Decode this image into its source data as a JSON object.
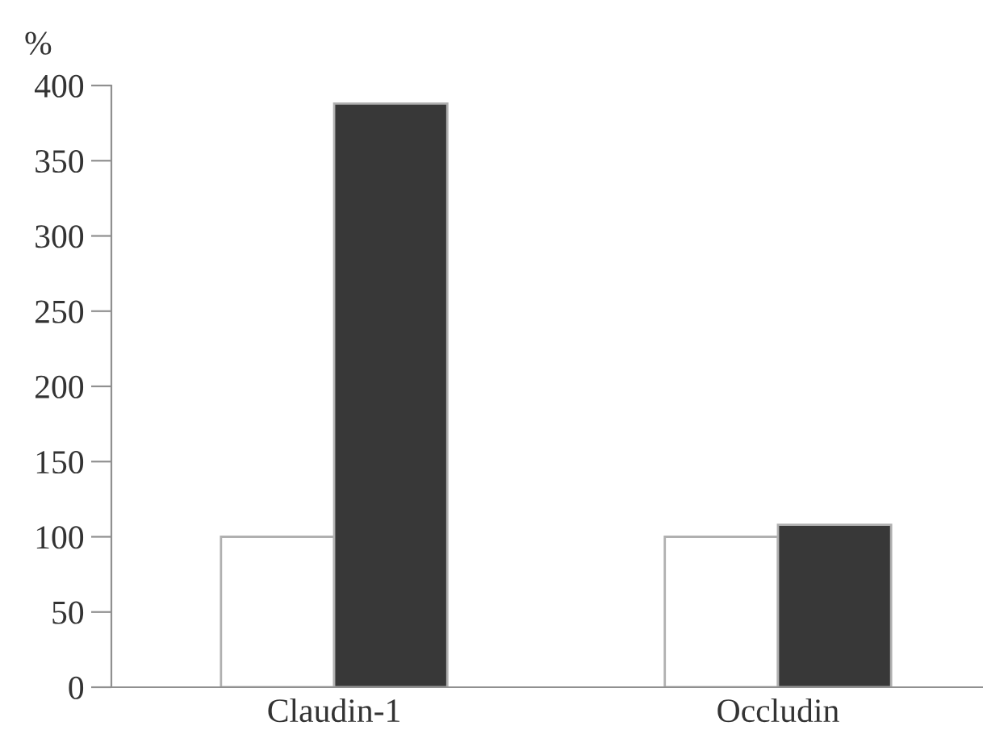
{
  "chart_data": {
    "type": "bar",
    "ylabel": "%",
    "categories": [
      "Claudin-1",
      "Occludin"
    ],
    "series": [
      {
        "color": "#ffffff",
        "values": [
          100,
          100
        ]
      },
      {
        "color": "#383838",
        "values": [
          388,
          108
        ]
      }
    ],
    "ylim": [
      0,
      400
    ],
    "yticks": [
      0,
      50,
      100,
      150,
      200,
      250,
      300,
      350,
      400
    ],
    "grid": false,
    "legend": false
  }
}
